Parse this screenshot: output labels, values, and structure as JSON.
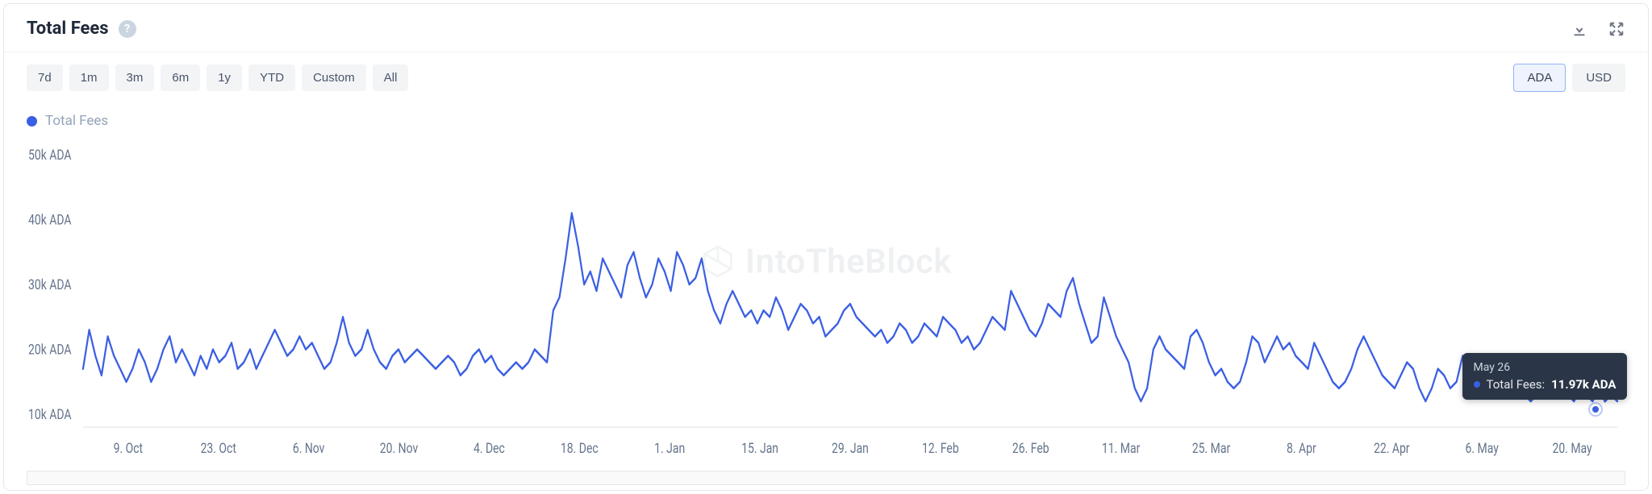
{
  "header": {
    "title": "Total Fees",
    "download_tooltip": "Download",
    "expand_tooltip": "Expand"
  },
  "ranges": [
    "7d",
    "1m",
    "3m",
    "6m",
    "1y",
    "YTD",
    "Custom",
    "All"
  ],
  "units": {
    "options": [
      "ADA",
      "USD"
    ],
    "active": "ADA"
  },
  "legend": {
    "label": "Total Fees",
    "color": "#3b5fe3"
  },
  "watermark": "IntoTheBlock",
  "tooltip": {
    "date": "May 26",
    "series": "Total Fees:",
    "value": "11.97k ADA",
    "dot_color": "#3b5fe3"
  },
  "chart": {
    "type": "line",
    "line_color": "#3b5fe3",
    "line_width": 2.2,
    "background": "#ffffff",
    "ylim": [
      8,
      52
    ],
    "y_ticks": [
      {
        "v": 10,
        "label": "10k ADA"
      },
      {
        "v": 20,
        "label": "20k ADA"
      },
      {
        "v": 30,
        "label": "30k ADA"
      },
      {
        "v": 40,
        "label": "40k ADA"
      },
      {
        "v": 50,
        "label": "50k ADA"
      }
    ],
    "x_labels": [
      "9. Oct",
      "23. Oct",
      "6. Nov",
      "20. Nov",
      "4. Dec",
      "18. Dec",
      "1. Jan",
      "15. Jan",
      "29. Jan",
      "12. Feb",
      "26. Feb",
      "11. Mar",
      "25. Mar",
      "8. Apr",
      "22. Apr",
      "6. May",
      "20. May"
    ],
    "data_k": [
      17,
      23,
      19,
      16,
      22,
      19,
      17,
      15,
      17,
      20,
      18,
      15,
      17,
      20,
      22,
      18,
      20,
      18,
      16,
      19,
      17,
      20,
      18,
      19,
      21,
      17,
      18,
      20,
      17,
      19,
      21,
      23,
      21,
      19,
      20,
      22,
      20,
      21,
      19,
      17,
      18,
      21,
      25,
      21,
      19,
      20,
      23,
      20,
      18,
      17,
      19,
      20,
      18,
      19,
      20,
      19,
      18,
      17,
      18,
      19,
      18,
      16,
      17,
      19,
      20,
      18,
      19,
      17,
      16,
      17,
      18,
      17,
      18,
      20,
      19,
      18,
      26,
      28,
      34,
      41,
      36,
      30,
      32,
      29,
      34,
      32,
      30,
      28,
      33,
      35,
      31,
      28,
      30,
      34,
      32,
      29,
      35,
      33,
      30,
      31,
      34,
      29,
      26,
      24,
      27,
      29,
      27,
      25,
      26,
      24,
      26,
      25,
      28,
      26,
      23,
      25,
      27,
      26,
      24,
      25,
      22,
      23,
      24,
      26,
      27,
      25,
      24,
      23,
      22,
      23,
      21,
      22,
      24,
      23,
      21,
      22,
      24,
      23,
      22,
      25,
      24,
      23,
      21,
      22,
      20,
      21,
      23,
      25,
      24,
      23,
      29,
      27,
      25,
      23,
      22,
      24,
      27,
      26,
      25,
      29,
      31,
      27,
      24,
      21,
      22,
      28,
      25,
      22,
      20,
      18,
      14,
      12,
      14,
      20,
      22,
      20,
      19,
      18,
      17,
      22,
      23,
      21,
      18,
      16,
      17,
      15,
      14,
      15,
      18,
      22,
      21,
      18,
      20,
      22,
      20,
      21,
      19,
      18,
      17,
      21,
      19,
      17,
      15,
      14,
      15,
      17,
      20,
      22,
      20,
      18,
      16,
      15,
      14,
      16,
      18,
      17,
      14,
      12,
      14,
      17,
      16,
      14,
      15,
      19,
      18,
      15,
      16,
      15,
      14,
      13,
      15,
      16,
      15,
      13,
      12,
      13,
      14,
      13,
      15,
      14,
      13,
      12,
      14,
      13,
      12,
      14,
      11.97,
      13,
      12
    ],
    "hover_index": 241,
    "baseline_color": "#e5e7eb"
  }
}
